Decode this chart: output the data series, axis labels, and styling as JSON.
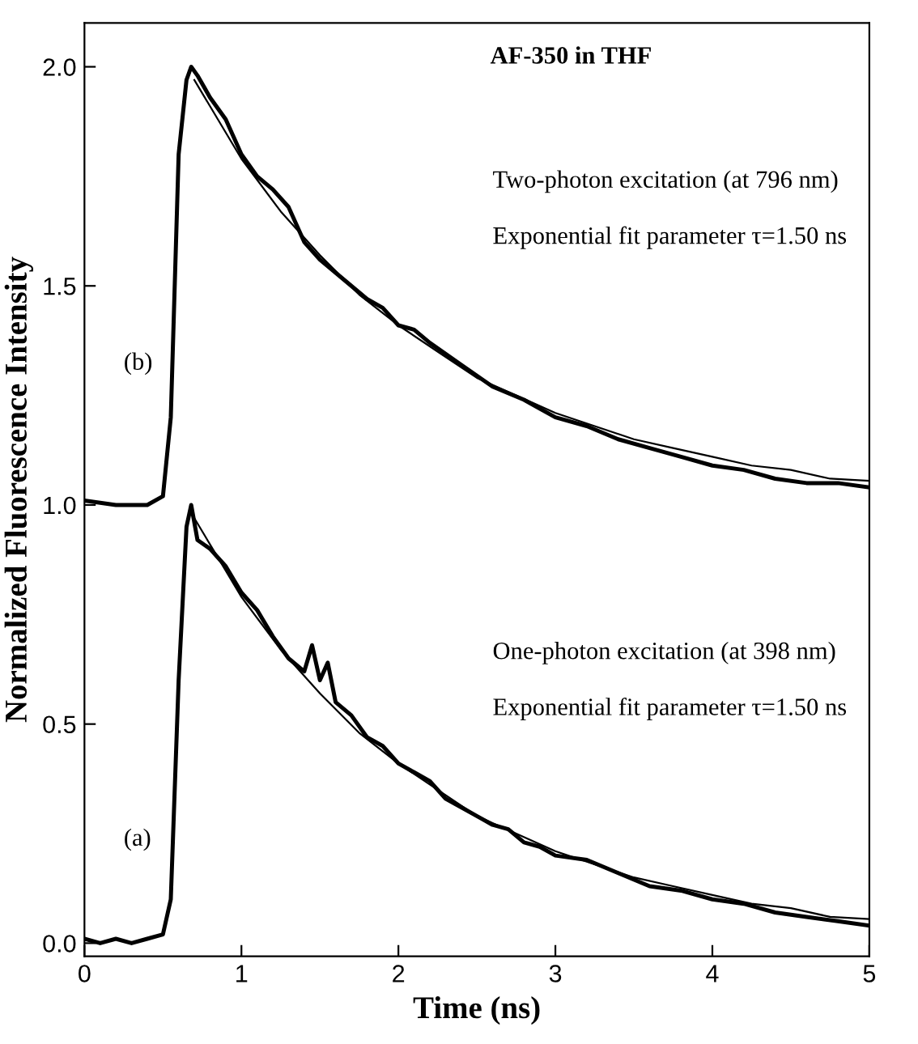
{
  "chart_data": {
    "type": "line",
    "title": "AF-350 in THF",
    "xlabel": "Time (ns)",
    "ylabel": "Normalized Fluorescence Intensity",
    "annotations": [
      "Two-photon excitation (at 796 nm)",
      "Exponential fit parameter τ=1.50 ns",
      "One-photon excitation (at 398 nm)",
      "Exponential fit parameter τ=1.50 ns",
      "(b)",
      "(a)"
    ],
    "xlim": [
      0,
      5
    ],
    "ylim": [
      -0.03,
      2.1
    ],
    "xticks": [
      0,
      1,
      2,
      3,
      4,
      5
    ],
    "yticks": [
      {
        "value": 0,
        "label": "0.0"
      },
      {
        "value": 0.5,
        "label": "0.5"
      },
      {
        "value": 1,
        "label": "1.0"
      },
      {
        "value": 1.5,
        "label": "1.5"
      },
      {
        "value": 2,
        "label": "2.0"
      }
    ],
    "grid": false,
    "legend": false,
    "marker": "none",
    "line_style": "solid",
    "series": [
      {
        "color": "#000000",
        "x": [
          0,
          0.1,
          0.2,
          0.3,
          0.4,
          0.5,
          0.55,
          0.6,
          0.65,
          0.68,
          0.72,
          0.8,
          0.9,
          1.0,
          1.1,
          1.2,
          1.3,
          1.4,
          1.45,
          1.5,
          1.55,
          1.6,
          1.7,
          1.8,
          1.9,
          2.0,
          2.1,
          2.2,
          2.3,
          2.4,
          2.5,
          2.6,
          2.7,
          2.8,
          2.9,
          3.0,
          3.2,
          3.4,
          3.6,
          3.8,
          4.0,
          4.2,
          4.4,
          4.6,
          4.8,
          5.0
        ],
        "values": [
          0.01,
          0.0,
          0.01,
          0.0,
          0.01,
          0.02,
          0.1,
          0.6,
          0.95,
          1.0,
          0.92,
          0.9,
          0.86,
          0.8,
          0.76,
          0.7,
          0.65,
          0.62,
          0.68,
          0.6,
          0.64,
          0.55,
          0.52,
          0.47,
          0.45,
          0.41,
          0.39,
          0.37,
          0.33,
          0.31,
          0.29,
          0.27,
          0.26,
          0.23,
          0.22,
          0.2,
          0.19,
          0.16,
          0.13,
          0.12,
          0.1,
          0.09,
          0.07,
          0.06,
          0.05,
          0.04
        ]
      },
      {
        "color": "#000000",
        "x": [
          0.7,
          0.85,
          1.0,
          1.25,
          1.5,
          1.75,
          2.0,
          2.25,
          2.5,
          2.75,
          3.0,
          3.25,
          3.5,
          3.75,
          4.0,
          4.25,
          4.5,
          4.75,
          5.0
        ],
        "values": [
          0.97,
          0.88,
          0.79,
          0.67,
          0.57,
          0.48,
          0.41,
          0.35,
          0.29,
          0.25,
          0.21,
          0.18,
          0.15,
          0.13,
          0.11,
          0.09,
          0.08,
          0.06,
          0.055
        ]
      },
      {
        "color": "#000000",
        "x": [
          0,
          0.2,
          0.4,
          0.5,
          0.55,
          0.6,
          0.65,
          0.68,
          0.72,
          0.8,
          0.9,
          1.0,
          1.1,
          1.2,
          1.3,
          1.4,
          1.5,
          1.6,
          1.7,
          1.8,
          1.9,
          2.0,
          2.1,
          2.2,
          2.4,
          2.6,
          2.8,
          3.0,
          3.2,
          3.4,
          3.6,
          3.8,
          4.0,
          4.2,
          4.4,
          4.6,
          4.8,
          5.0
        ],
        "values": [
          1.01,
          1.0,
          1.0,
          1.02,
          1.2,
          1.8,
          1.97,
          2.0,
          1.98,
          1.93,
          1.88,
          1.8,
          1.75,
          1.72,
          1.68,
          1.6,
          1.56,
          1.53,
          1.5,
          1.47,
          1.45,
          1.41,
          1.4,
          1.37,
          1.32,
          1.27,
          1.24,
          1.2,
          1.18,
          1.15,
          1.13,
          1.11,
          1.09,
          1.08,
          1.06,
          1.05,
          1.05,
          1.04
        ]
      },
      {
        "color": "#000000",
        "x": [
          0.7,
          0.85,
          1.0,
          1.25,
          1.5,
          1.75,
          2.0,
          2.25,
          2.5,
          2.75,
          3.0,
          3.25,
          3.5,
          3.75,
          4.0,
          4.25,
          4.5,
          4.75,
          5.0
        ],
        "values": [
          1.97,
          1.88,
          1.79,
          1.67,
          1.57,
          1.48,
          1.41,
          1.35,
          1.29,
          1.25,
          1.21,
          1.18,
          1.15,
          1.13,
          1.11,
          1.09,
          1.08,
          1.06,
          1.055
        ]
      }
    ]
  }
}
